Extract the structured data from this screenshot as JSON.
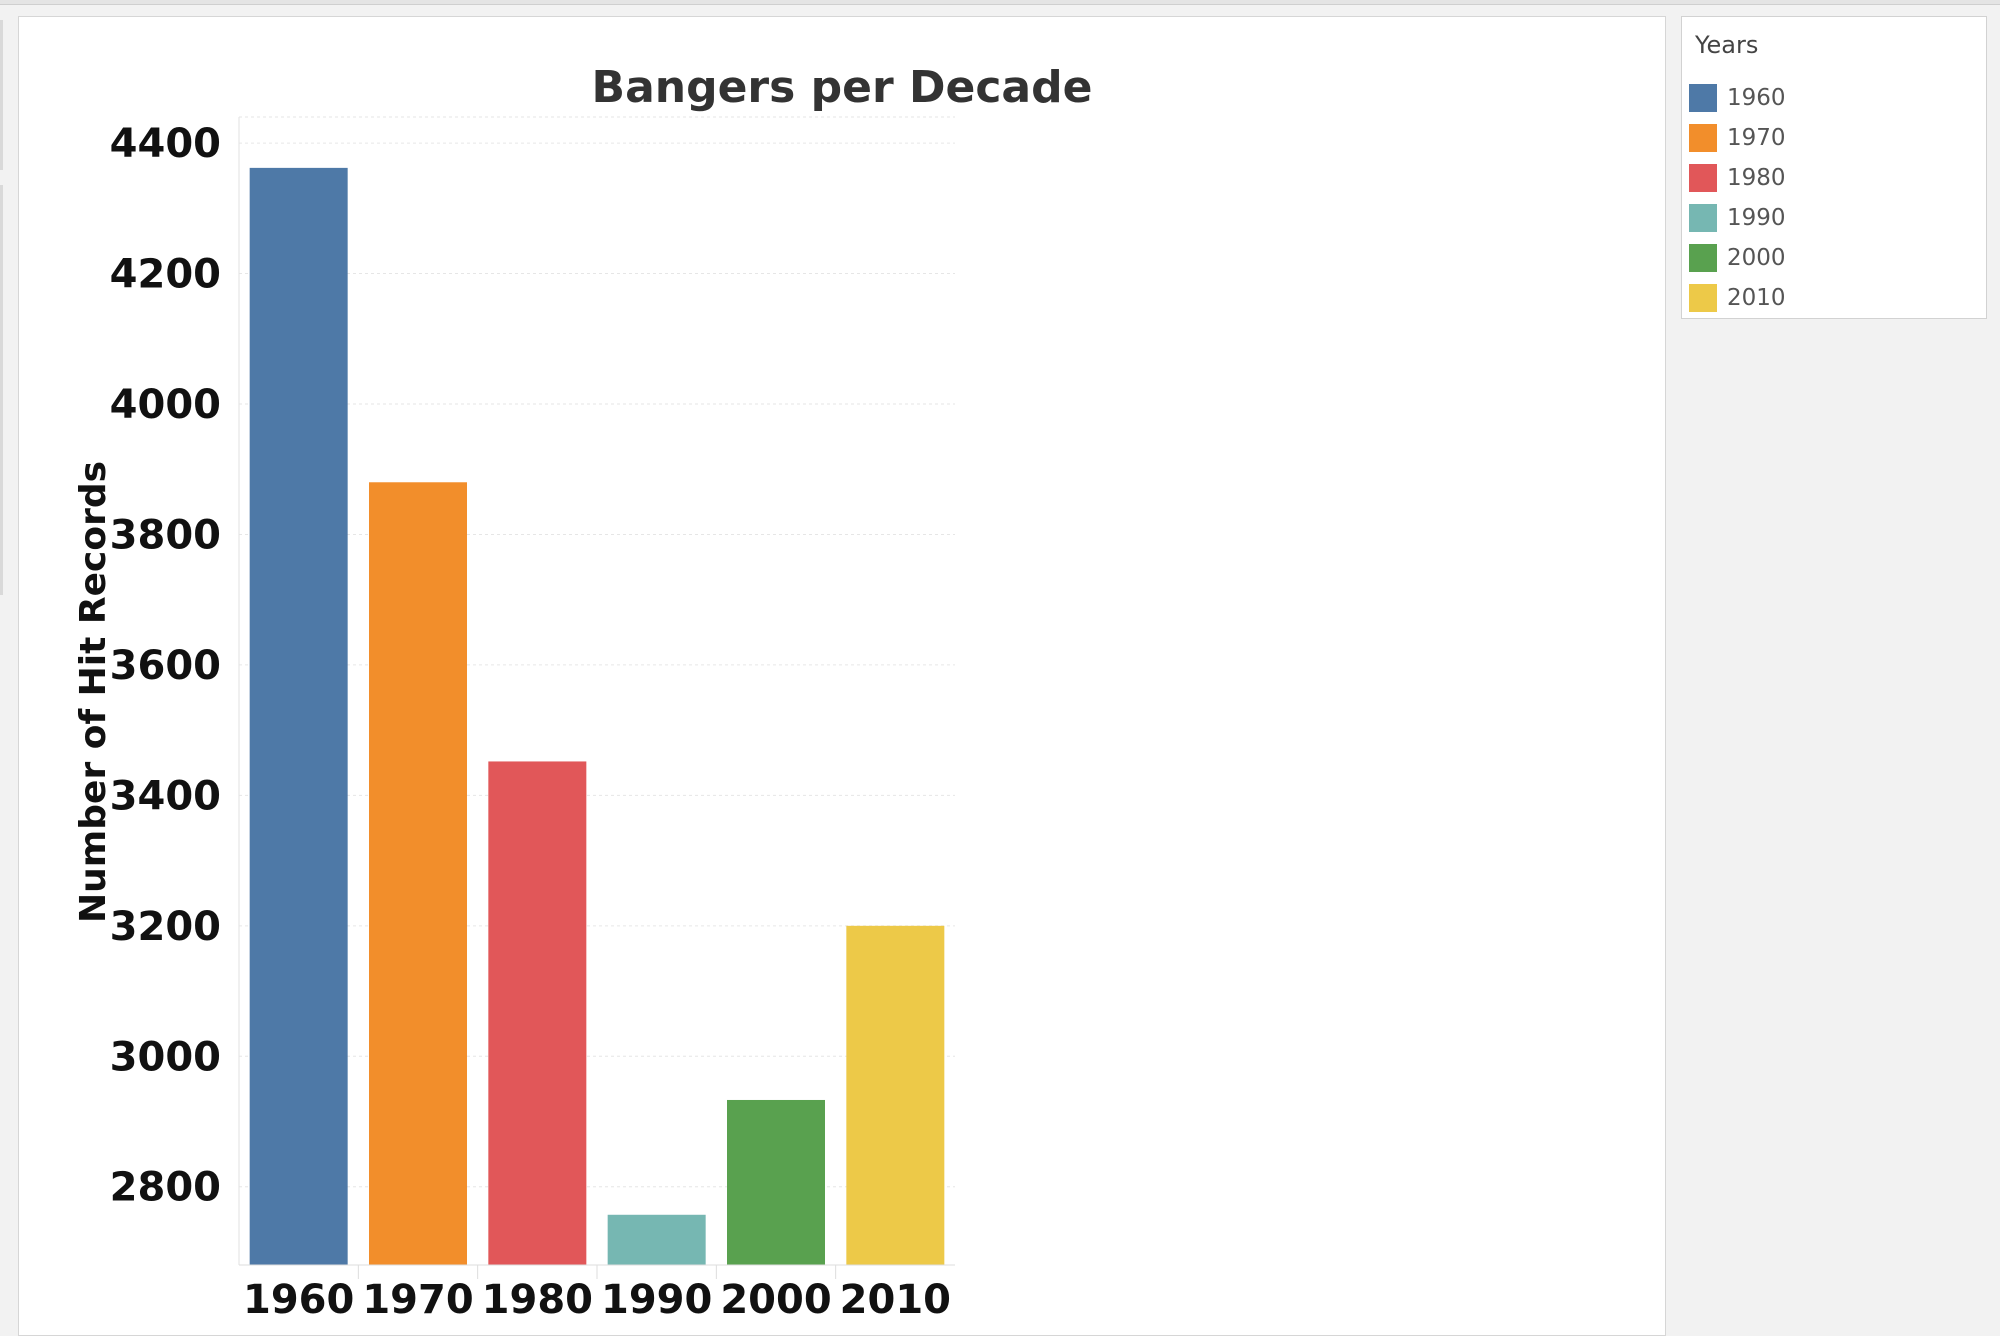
{
  "chart_data": {
    "type": "bar",
    "title": "Bangers per Decade",
    "xlabel": "",
    "ylabel": "Number of Hit Records",
    "categories": [
      "1960",
      "1970",
      "1980",
      "1990",
      "2000",
      "2010"
    ],
    "values": [
      4362,
      3880,
      3452,
      2757,
      2933,
      3200
    ],
    "colors": [
      "#4e79a7",
      "#f28e2b",
      "#e15759",
      "#76b7b2",
      "#59a14f",
      "#edc948"
    ],
    "yticks": [
      2800,
      3000,
      3200,
      3400,
      3600,
      3800,
      4000,
      4200,
      4400
    ],
    "ylim": [
      2680,
      4440
    ],
    "grid": true
  },
  "legend": {
    "title": "Years",
    "items": [
      {
        "label": "1960",
        "color": "#4e79a7"
      },
      {
        "label": "1970",
        "color": "#f28e2b"
      },
      {
        "label": "1980",
        "color": "#e15759"
      },
      {
        "label": "1990",
        "color": "#76b7b2"
      },
      {
        "label": "2000",
        "color": "#59a14f"
      },
      {
        "label": "2010",
        "color": "#edc948"
      }
    ]
  }
}
